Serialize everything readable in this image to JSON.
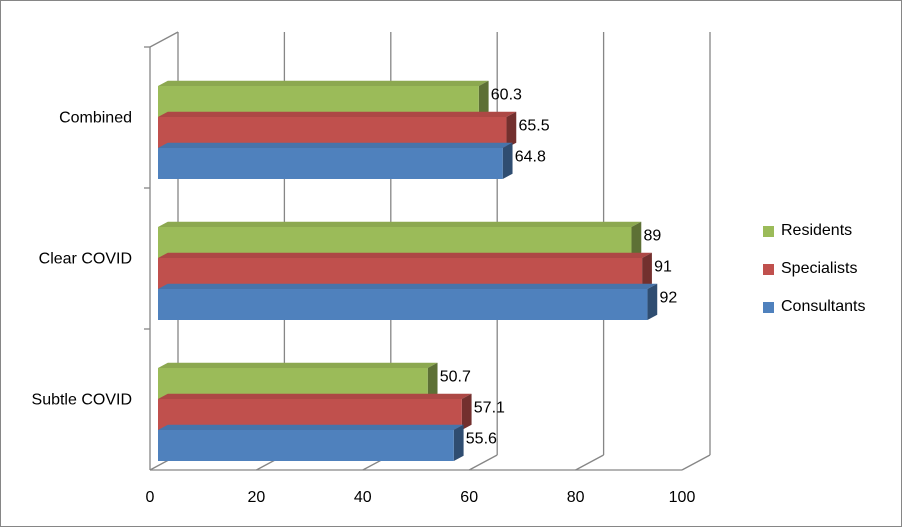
{
  "chart_data": {
    "type": "bar",
    "orientation": "horizontal",
    "style": "3d-clustered",
    "categories": [
      "Subtle COVID",
      "Clear COVID",
      "Combined"
    ],
    "series": [
      {
        "name": "Consultants",
        "values": [
          55.6,
          92,
          64.8
        ],
        "color": "#4f81bd",
        "labels": [
          "55.6",
          "92",
          "64.8"
        ]
      },
      {
        "name": "Specialists",
        "values": [
          57.1,
          91,
          65.5
        ],
        "color": "#c0504d",
        "labels": [
          "57.1",
          "91",
          "65.5"
        ]
      },
      {
        "name": "Residents",
        "values": [
          50.7,
          89,
          60.3
        ],
        "color": "#9bbb59",
        "labels": [
          "50.7",
          "89",
          "60.3"
        ]
      }
    ],
    "x_ticks": [
      "0",
      "20",
      "40",
      "60",
      "80",
      "100"
    ],
    "xlim": [
      0,
      100
    ],
    "grid": true,
    "legend_position": "right",
    "legend_order": [
      "Residents",
      "Specialists",
      "Consultants"
    ]
  }
}
